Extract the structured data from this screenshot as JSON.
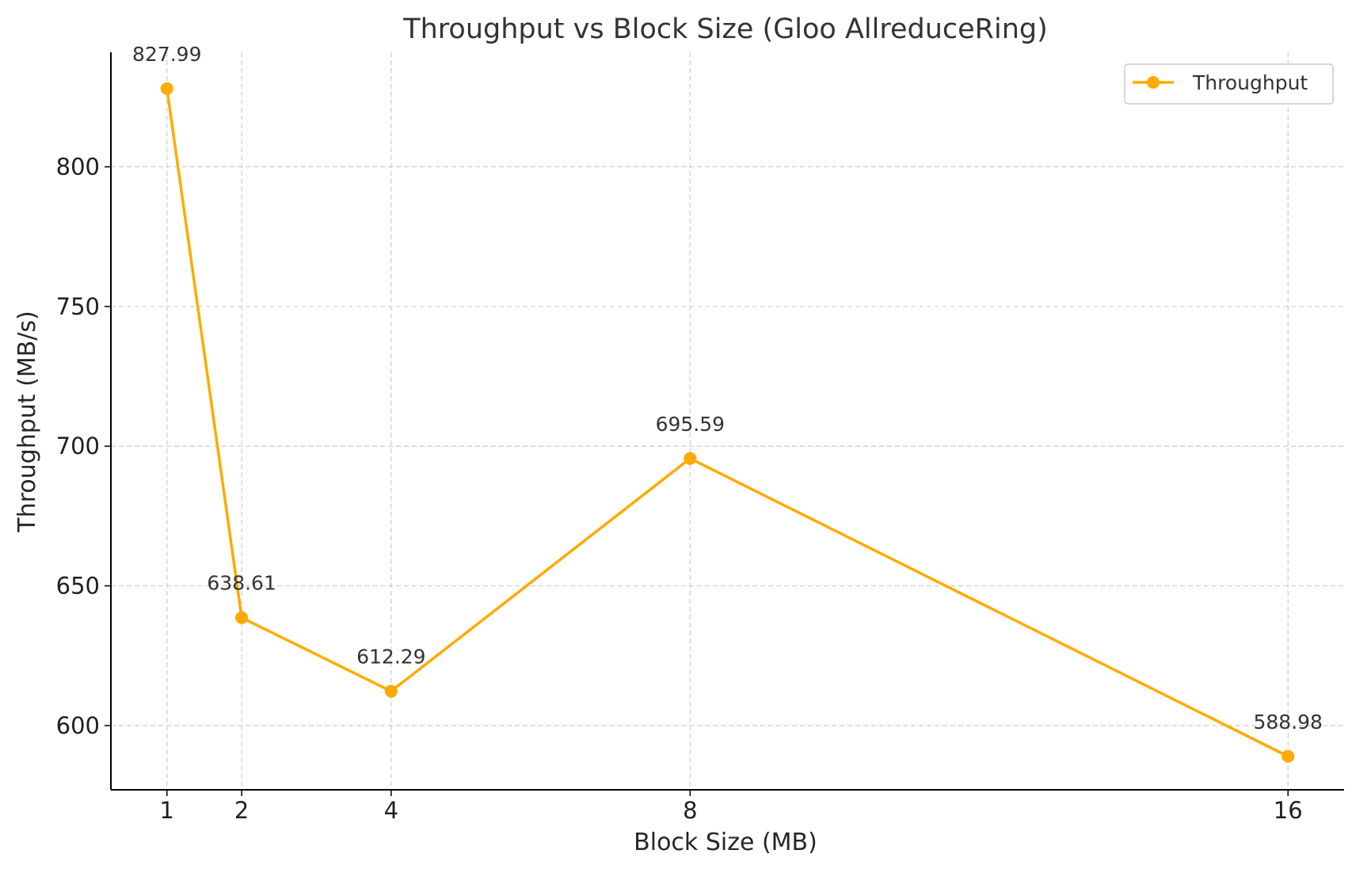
{
  "chart_data": {
    "type": "line",
    "title": "Throughput vs Block Size (Gloo AllreduceRing)",
    "xlabel": "Block Size (MB)",
    "ylabel": "Throughput (MB/s)",
    "x": [
      1,
      2,
      4,
      8,
      16
    ],
    "x_tick_labels": [
      "1",
      "2",
      "4",
      "8",
      "16"
    ],
    "xlim": [
      0.25,
      16.75
    ],
    "ylim": [
      577,
      841
    ],
    "y_ticks": [
      600,
      650,
      700,
      750,
      800
    ],
    "y_tick_labels": [
      "600",
      "650",
      "700",
      "750",
      "800"
    ],
    "grid": true,
    "legend_position": "top-right",
    "series": [
      {
        "name": "Throughput",
        "color": "#FFAA00",
        "marker": "circle",
        "values": [
          827.99,
          638.61,
          612.29,
          695.59,
          588.98
        ],
        "data_labels": [
          "827.99",
          "638.61",
          "612.29",
          "695.59",
          "588.98"
        ]
      }
    ]
  }
}
